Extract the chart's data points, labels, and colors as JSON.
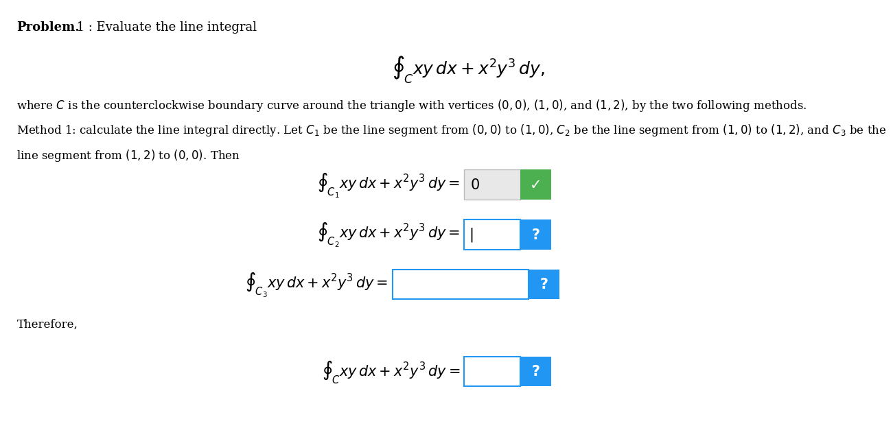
{
  "background_color": "#ffffff",
  "text_color": "#000000",
  "check_color": "#4caf50",
  "question_color": "#2196f3",
  "box_fill_checked": "#e8e8e8",
  "box_fill_input": "#ffffff",
  "title_bold": "Problem.",
  "title_rest": "  1 : Evaluate the line integral",
  "main_integral": "$\\oint_C xy\\,dx + x^2y^3\\,dy,$",
  "para1": "where $C$ is the counterclockwise boundary curve around the triangle with vertices $(0,0)$, $(1,0)$, and $(1,2)$, by the two following methods.",
  "para2": "Method 1: calculate the line integral directly. Let $C_1$ be the line segment from $(0,0)$ to $(1,0)$, $C_2$ be the line segment from $(1,0)$ to $(1,2)$, and $C_3$ be the",
  "para3": "line segment from $(1,2)$ to $(0,0)$. Then",
  "int_c1": "$\\oint_{C_1} xy\\,dx + x^2y^3\\,dy = $",
  "int_c2": "$\\oint_{C_2} xy\\,dx + x^2y^3\\,dy = $",
  "int_c3": "$\\oint_{C_3} xy\\,dx + x^2y^3\\,dy = $",
  "int_c": "$\\oint_{C} xy\\,dx + x^2y^3\\,dy = $",
  "ans1": "0",
  "ans2": "|",
  "ans3": "",
  "ans4": "",
  "therefore": "Therefore,",
  "fs_title": 13,
  "fs_body": 12,
  "fs_math": 15
}
